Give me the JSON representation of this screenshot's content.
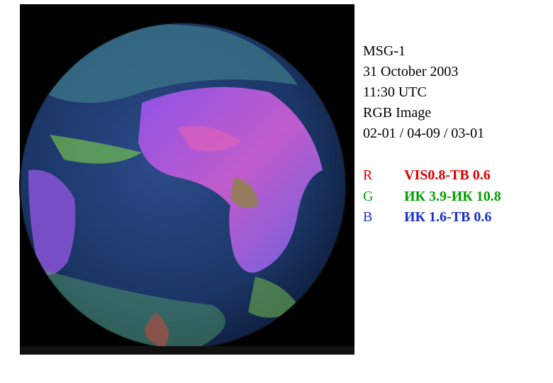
{
  "info": {
    "lines": [
      "MSG-1",
      "31 October 2003",
      "11:30 UTC",
      "RGB Image",
      "02-01 / 04-09 / 03-01"
    ]
  },
  "legend": [
    {
      "letter": "R",
      "text": "VIS0.8-TB 0.6",
      "color": "#e00000"
    },
    {
      "letter": "G",
      "text": "ИК 3.9-ИК 10.8",
      "color": "#00a000"
    },
    {
      "letter": "B",
      "text": "ИК 1.6-TB 0.6",
      "color": "#1a2fd0"
    }
  ]
}
